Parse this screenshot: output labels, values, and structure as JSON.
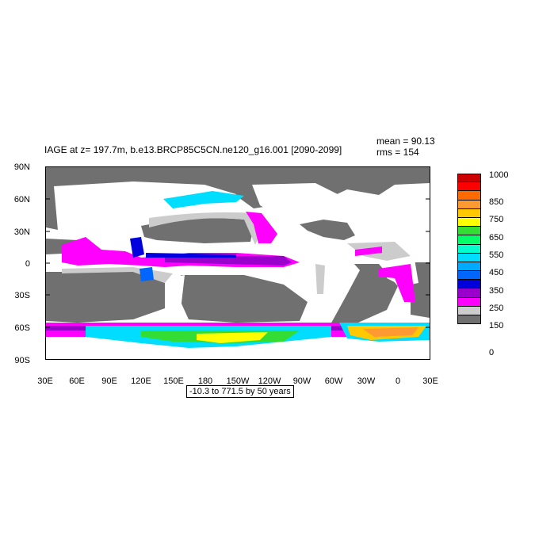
{
  "title": "IAGE at z= 197.7m, b.e13.BRCP85C5CN.ne120_g16.001 [2090-2099]",
  "stats": {
    "mean": "mean = 90.13",
    "rms": "rms = 154"
  },
  "contour_info": "-10.3 to 771.5 by 50 years",
  "axes": {
    "y_ticks": [
      "90N",
      "60N",
      "30N",
      "0",
      "30S",
      "60S",
      "90S"
    ],
    "x_ticks": [
      "30E",
      "60E",
      "90E",
      "120E",
      "150E",
      "180",
      "150W",
      "120W",
      "90W",
      "60W",
      "30W",
      "0",
      "30E"
    ]
  },
  "colorbar": {
    "labels": [
      "1000",
      "850",
      "750",
      "650",
      "550",
      "450",
      "350",
      "250",
      "150",
      "0"
    ],
    "colors": [
      "#cc0000",
      "#ff0000",
      "#ff6a00",
      "#ff9a33",
      "#ffc800",
      "#ffff00",
      "#33dd33",
      "#00ff66",
      "#00ffcc",
      "#00ddff",
      "#00aaff",
      "#0066ff",
      "#0000dd",
      "#9900cc",
      "#ff00ff",
      "#cccccc",
      "#707070"
    ]
  },
  "colors": {
    "land": "#707070",
    "young": "#cccccc",
    "ocean_blank": "#ffffff"
  }
}
